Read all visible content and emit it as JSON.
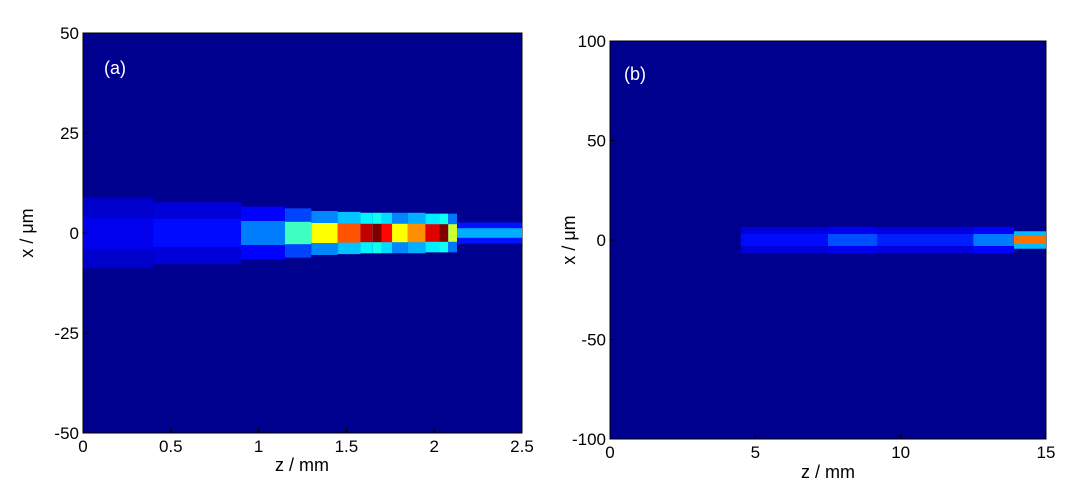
{
  "chart_data": [
    {
      "type": "heatmap",
      "panel_label": "(a)",
      "xlabel": "z / mm",
      "ylabel": "x / μm",
      "xlim": [
        0,
        2.5
      ],
      "ylim": [
        -50,
        50
      ],
      "xticks": [
        "0",
        "0.5",
        "1",
        "1.5",
        "2",
        "2.5"
      ],
      "xtick_values": [
        0,
        0.5,
        1,
        1.5,
        2,
        2.5
      ],
      "yticks": [
        "50",
        "25",
        "0",
        "-25",
        "-50"
      ],
      "ytick_values": [
        50,
        25,
        0,
        -25,
        -50
      ],
      "grid": false,
      "colormap": "jet",
      "background": "#00008f",
      "beam_segments": [
        {
          "z_start": 0.0,
          "z_end": 0.4,
          "half_width": 4.0,
          "intensity": 0.05
        },
        {
          "z_start": 0.4,
          "z_end": 0.9,
          "half_width": 3.5,
          "intensity": 0.08
        },
        {
          "z_start": 0.9,
          "z_end": 1.15,
          "half_width": 3.0,
          "intensity": 0.2
        },
        {
          "z_start": 1.15,
          "z_end": 1.3,
          "half_width": 2.8,
          "intensity": 0.4
        },
        {
          "z_start": 1.3,
          "z_end": 1.45,
          "half_width": 2.5,
          "intensity": 0.6
        },
        {
          "z_start": 1.45,
          "z_end": 1.58,
          "half_width": 2.4,
          "intensity": 0.78
        },
        {
          "z_start": 1.58,
          "z_end": 1.65,
          "half_width": 2.3,
          "intensity": 0.93
        },
        {
          "z_start": 1.65,
          "z_end": 1.7,
          "half_width": 2.3,
          "intensity": 1.0
        },
        {
          "z_start": 1.7,
          "z_end": 1.76,
          "half_width": 2.3,
          "intensity": 0.86
        },
        {
          "z_start": 1.76,
          "z_end": 1.85,
          "half_width": 2.3,
          "intensity": 0.6
        },
        {
          "z_start": 1.85,
          "z_end": 1.95,
          "half_width": 2.3,
          "intensity": 0.72
        },
        {
          "z_start": 1.95,
          "z_end": 2.03,
          "half_width": 2.2,
          "intensity": 0.9
        },
        {
          "z_start": 2.03,
          "z_end": 2.08,
          "half_width": 2.2,
          "intensity": 1.0
        },
        {
          "z_start": 2.08,
          "z_end": 2.13,
          "half_width": 2.2,
          "intensity": 0.55
        },
        {
          "z_start": 2.13,
          "z_end": 2.5,
          "half_width": 1.2,
          "intensity": 0.25
        }
      ]
    },
    {
      "type": "heatmap",
      "panel_label": "(b)",
      "xlabel": "z / mm",
      "ylabel": "x / μm",
      "xlim": [
        0,
        15
      ],
      "ylim": [
        -100,
        100
      ],
      "xticks": [
        "0",
        "5",
        "10",
        "15"
      ],
      "xtick_values": [
        0,
        5,
        10,
        15
      ],
      "yticks": [
        "100",
        "50",
        "0",
        "-50",
        "-100"
      ],
      "ytick_values": [
        100,
        50,
        0,
        -50,
        -100
      ],
      "grid": false,
      "colormap": "jet",
      "background": "#00008f",
      "beam_segments": [
        {
          "z_start": 4.5,
          "z_end": 7.5,
          "half_width": 3.0,
          "intensity": 0.08
        },
        {
          "z_start": 7.5,
          "z_end": 9.2,
          "half_width": 3.0,
          "intensity": 0.15
        },
        {
          "z_start": 9.2,
          "z_end": 12.5,
          "half_width": 3.0,
          "intensity": 0.1
        },
        {
          "z_start": 12.5,
          "z_end": 13.9,
          "half_width": 3.0,
          "intensity": 0.2
        },
        {
          "z_start": 13.9,
          "z_end": 15.0,
          "half_width": 2.0,
          "intensity": 0.75
        }
      ]
    }
  ]
}
